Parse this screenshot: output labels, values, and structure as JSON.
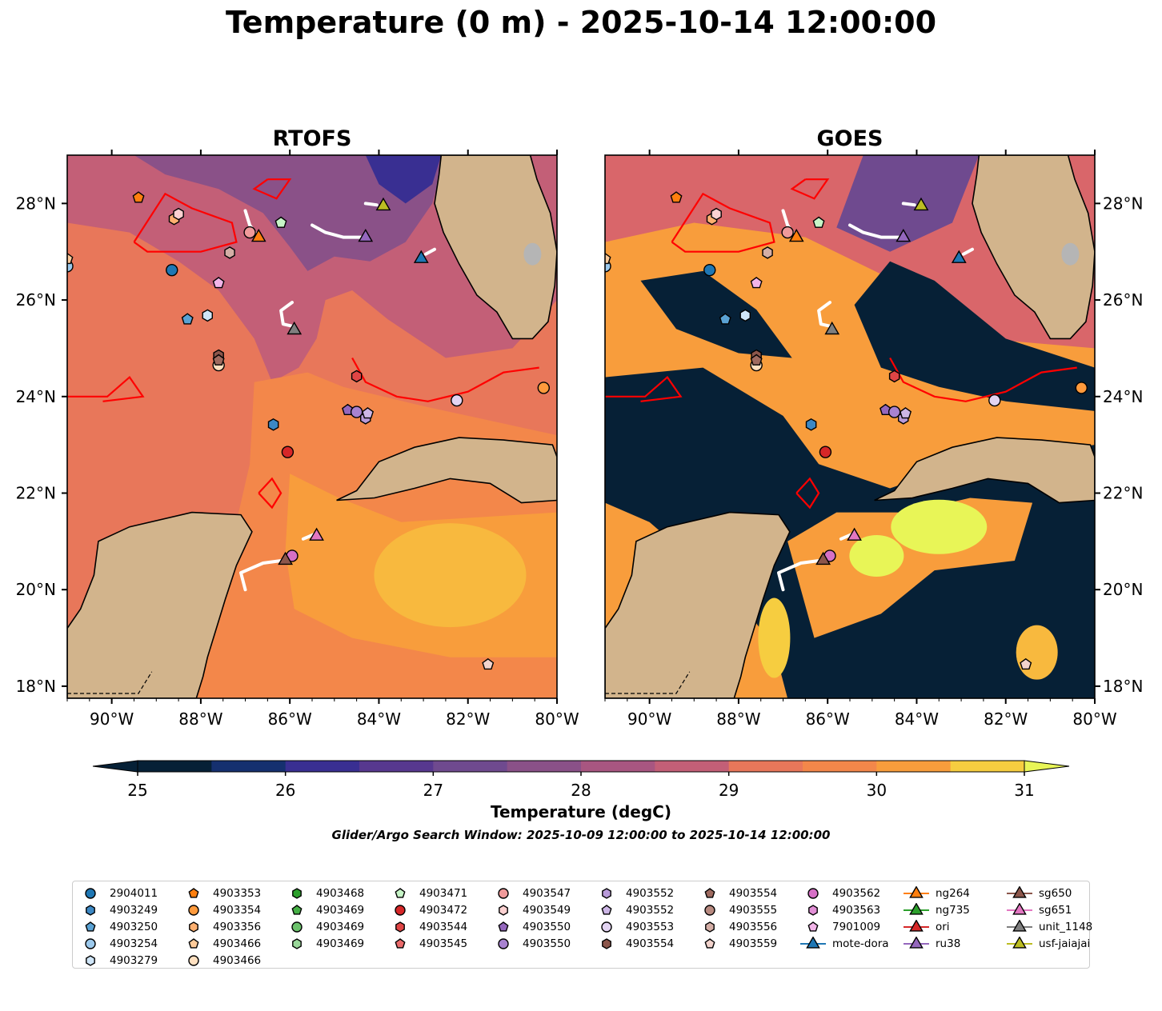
{
  "title": "Temperature (0 m) - 2025-10-14 12:00:00",
  "panels": [
    {
      "title": "RTOFS",
      "data_source": "model"
    },
    {
      "title": "GOES",
      "data_source": "satellite"
    }
  ],
  "axes": {
    "lon_ticks": [
      "90°W",
      "88°W",
      "86°W",
      "84°W",
      "82°W",
      "80°W"
    ],
    "lat_ticks": [
      "28°N",
      "26°N",
      "24°N",
      "22°N",
      "20°N",
      "18°N"
    ],
    "lon_range": [
      -91,
      -80
    ],
    "lat_range": [
      17.75,
      29
    ]
  },
  "colorbar": {
    "ticks": [
      "25",
      "26",
      "27",
      "28",
      "29",
      "30",
      "31"
    ],
    "label": "Temperature (degC)",
    "range": [
      25,
      31
    ],
    "colors": [
      "#062036",
      "#15306f",
      "#392f92",
      "#57388f",
      "#6f4a8f",
      "#8a5188",
      "#a85681",
      "#c35f77",
      "#d9666a",
      "#e8775a",
      "#f3874a",
      "#f89d3c",
      "#f8b93e",
      "#f6cd40",
      "#e8f557"
    ]
  },
  "search_window": "Glider/Argo Search Window: 2025-10-09 12:00:00 to 2025-10-14 12:00:00",
  "legend": {
    "columns": [
      [
        {
          "label": "2904011",
          "marker": "circle",
          "color": "#1f77b4"
        },
        {
          "label": "4903249",
          "marker": "hexagon",
          "color": "#3c88c4"
        },
        {
          "label": "4903250",
          "marker": "pentagon",
          "color": "#5aa2d4"
        },
        {
          "label": "4903254",
          "marker": "circle",
          "color": "#9cc9ec"
        },
        {
          "label": "4903279",
          "marker": "hexagon",
          "color": "#cfe5f7"
        }
      ],
      [
        {
          "label": "4903353",
          "marker": "pentagon",
          "color": "#ff7f0e"
        },
        {
          "label": "4903354",
          "marker": "circle",
          "color": "#ff9a3c"
        },
        {
          "label": "4903356",
          "marker": "hexagon",
          "color": "#ffb070"
        },
        {
          "label": "4903466",
          "marker": "pentagon",
          "color": "#ffcb9a"
        },
        {
          "label": "4903466",
          "marker": "circle",
          "color": "#ffe0c0"
        }
      ],
      [
        {
          "label": "4903468",
          "marker": "hexagon",
          "color": "#2ca02c"
        },
        {
          "label": "4903469",
          "marker": "pentagon",
          "color": "#45b045"
        },
        {
          "label": "4903469",
          "marker": "circle",
          "color": "#6cc26c"
        },
        {
          "label": "4903469",
          "marker": "hexagon",
          "color": "#9ad89a"
        }
      ],
      [
        {
          "label": "4903471",
          "marker": "pentagon",
          "color": "#c7f5c7"
        },
        {
          "label": "4903472",
          "marker": "circle",
          "color": "#d62728"
        },
        {
          "label": "4903544",
          "marker": "hexagon",
          "color": "#e04545"
        },
        {
          "label": "4903545",
          "marker": "pentagon",
          "color": "#ea6a6a"
        }
      ],
      [
        {
          "label": "4903547",
          "marker": "circle",
          "color": "#f09a9a"
        },
        {
          "label": "4903549",
          "marker": "hexagon",
          "color": "#fcd1d1"
        },
        {
          "label": "4903550",
          "marker": "pentagon",
          "color": "#9467bd"
        },
        {
          "label": "4903550",
          "marker": "circle",
          "color": "#a882d0"
        }
      ],
      [
        {
          "label": "4903552",
          "marker": "hexagon",
          "color": "#b89ad9"
        },
        {
          "label": "4903552",
          "marker": "pentagon",
          "color": "#cdb6e6"
        },
        {
          "label": "4903553",
          "marker": "circle",
          "color": "#e3d4f2"
        },
        {
          "label": "4903554",
          "marker": "hexagon",
          "color": "#8c564b"
        }
      ],
      [
        {
          "label": "4903554",
          "marker": "pentagon",
          "color": "#9e6a5f"
        },
        {
          "label": "4903555",
          "marker": "circle",
          "color": "#b88a80"
        },
        {
          "label": "4903556",
          "marker": "hexagon",
          "color": "#d4aea6"
        },
        {
          "label": "4903559",
          "marker": "pentagon",
          "color": "#f2d3cc"
        }
      ],
      [
        {
          "label": "4903562",
          "marker": "circle",
          "color": "#d670c6"
        },
        {
          "label": "4903563",
          "marker": "hexagon",
          "color": "#e28fd6"
        },
        {
          "label": "7901009",
          "marker": "pentagon",
          "color": "#f2b4e8"
        },
        {
          "label": "mote-dora",
          "marker": "triangle",
          "color": "#1f77b4"
        }
      ],
      [
        {
          "label": "ng264",
          "marker": "triangle",
          "color": "#ff7f0e"
        },
        {
          "label": "ng735",
          "marker": "triangle",
          "color": "#2ca02c"
        },
        {
          "label": "ori",
          "marker": "triangle",
          "color": "#d62728"
        },
        {
          "label": "ru38",
          "marker": "triangle",
          "color": "#9467bd"
        }
      ],
      [
        {
          "label": "sg650",
          "marker": "triangle",
          "color": "#8c564b"
        },
        {
          "label": "sg651",
          "marker": "triangle",
          "color": "#e377c2"
        },
        {
          "label": "unit_1148",
          "marker": "triangle",
          "color": "#7f7f7f"
        },
        {
          "label": "usf-jaiajai",
          "marker": "triangle",
          "color": "#bcbd22"
        }
      ]
    ]
  },
  "map_markers": [
    {
      "name": "2904011",
      "marker": "circle",
      "color": "#1f77b4",
      "lon": -88.65,
      "lat": 26.62
    },
    {
      "name": "4903249",
      "marker": "hexagon",
      "color": "#3c88c4",
      "lon": -86.37,
      "lat": 23.42
    },
    {
      "name": "4903250",
      "marker": "pentagon",
      "color": "#5aa2d4",
      "lon": -88.3,
      "lat": 25.6
    },
    {
      "name": "4903254",
      "marker": "circle",
      "color": "#9cc9ec",
      "lon": -91.0,
      "lat": 26.7
    },
    {
      "name": "4903279",
      "marker": "hexagon",
      "color": "#cfe5f7",
      "lon": -87.85,
      "lat": 25.68
    },
    {
      "name": "4903353",
      "marker": "pentagon",
      "color": "#ff7f0e",
      "lon": -89.4,
      "lat": 28.12
    },
    {
      "name": "4903354",
      "marker": "circle",
      "color": "#ff9a3c",
      "lon": -80.3,
      "lat": 24.18
    },
    {
      "name": "4903356",
      "marker": "hexagon",
      "color": "#ffb070",
      "lon": -88.6,
      "lat": 27.68
    },
    {
      "name": "4903466",
      "marker": "pentagon",
      "color": "#ffcb9a",
      "lon": -91.0,
      "lat": 26.85
    },
    {
      "name": "4903466",
      "marker": "circle",
      "color": "#ffe0c0",
      "lon": -87.6,
      "lat": 24.65
    },
    {
      "name": "4903471",
      "marker": "pentagon",
      "color": "#c7f5c7",
      "lon": -86.2,
      "lat": 27.6
    },
    {
      "name": "4903472",
      "marker": "circle",
      "color": "#d62728",
      "lon": -86.05,
      "lat": 22.85
    },
    {
      "name": "4903544",
      "marker": "hexagon",
      "color": "#e04545",
      "lon": -84.5,
      "lat": 24.42
    },
    {
      "name": "4903547",
      "marker": "circle",
      "color": "#f09a9a",
      "lon": -86.9,
      "lat": 27.4
    },
    {
      "name": "4903549",
      "marker": "hexagon",
      "color": "#fcd1d1",
      "lon": -88.5,
      "lat": 27.78
    },
    {
      "name": "4903550",
      "marker": "pentagon",
      "color": "#9467bd",
      "lon": -84.7,
      "lat": 23.72
    },
    {
      "name": "4903550",
      "marker": "circle",
      "color": "#a882d0",
      "lon": -84.5,
      "lat": 23.68
    },
    {
      "name": "4903552",
      "marker": "hexagon",
      "color": "#b89ad9",
      "lon": -84.3,
      "lat": 23.55
    },
    {
      "name": "4903552",
      "marker": "pentagon",
      "color": "#cdb6e6",
      "lon": -84.25,
      "lat": 23.65
    },
    {
      "name": "4903553",
      "marker": "circle",
      "color": "#e3d4f2",
      "lon": -82.25,
      "lat": 23.92
    },
    {
      "name": "4903554",
      "marker": "hexagon",
      "color": "#8c564b",
      "lon": -87.6,
      "lat": 24.85
    },
    {
      "name": "4903554",
      "marker": "pentagon",
      "color": "#9e6a5f",
      "lon": -87.6,
      "lat": 24.75
    },
    {
      "name": "4903556",
      "marker": "hexagon",
      "color": "#d4aea6",
      "lon": -87.35,
      "lat": 26.98
    },
    {
      "name": "4903559",
      "marker": "pentagon",
      "color": "#f2d3cc",
      "lon": -81.55,
      "lat": 18.45
    },
    {
      "name": "4903562",
      "marker": "circle",
      "color": "#d670c6",
      "lon": -85.95,
      "lat": 20.7
    },
    {
      "name": "7901009",
      "marker": "pentagon",
      "color": "#f2b4e8",
      "lon": -87.6,
      "lat": 26.35
    },
    {
      "name": "mote-dora",
      "marker": "triangle",
      "color": "#1f77b4",
      "lon": -83.05,
      "lat": 26.88
    },
    {
      "name": "ng264",
      "marker": "triangle",
      "color": "#ff7f0e",
      "lon": -86.7,
      "lat": 27.32
    },
    {
      "name": "ru38",
      "marker": "triangle",
      "color": "#9467bd",
      "lon": -84.3,
      "lat": 27.32
    },
    {
      "name": "sg650",
      "marker": "triangle",
      "color": "#8c564b",
      "lon": -86.1,
      "lat": 20.63
    },
    {
      "name": "sg651",
      "marker": "triangle",
      "color": "#e377c2",
      "lon": -85.4,
      "lat": 21.13
    },
    {
      "name": "unit_1148",
      "marker": "triangle",
      "color": "#7f7f7f",
      "lon": -85.9,
      "lat": 25.4
    },
    {
      "name": "usf-jaiajai",
      "marker": "triangle",
      "color": "#bcbd22",
      "lon": -83.9,
      "lat": 27.97
    }
  ],
  "glider_tracks": [
    {
      "name": "unit_1148",
      "points": [
        [
          -85.95,
          25.95
        ],
        [
          -86.2,
          25.78
        ],
        [
          -86.15,
          25.5
        ],
        [
          -85.9,
          25.45
        ]
      ]
    },
    {
      "name": "ru38",
      "points": [
        [
          -85.5,
          27.55
        ],
        [
          -85.2,
          27.4
        ],
        [
          -84.8,
          27.3
        ],
        [
          -84.4,
          27.3
        ]
      ]
    },
    {
      "name": "ng264",
      "points": [
        [
          -87.0,
          27.85
        ],
        [
          -86.9,
          27.55
        ],
        [
          -86.75,
          27.35
        ]
      ]
    },
    {
      "name": "sg651",
      "points": [
        [
          -85.7,
          21.05
        ],
        [
          -85.45,
          21.15
        ]
      ]
    },
    {
      "name": "sg650",
      "points": [
        [
          -87.0,
          20.0
        ],
        [
          -87.1,
          20.35
        ],
        [
          -86.6,
          20.55
        ],
        [
          -86.2,
          20.6
        ]
      ]
    },
    {
      "name": "usf-jaiajai",
      "points": [
        [
          -84.3,
          28.0
        ],
        [
          -84.05,
          27.97
        ]
      ]
    },
    {
      "name": "mote-dora",
      "points": [
        [
          -82.95,
          26.95
        ],
        [
          -82.75,
          27.05
        ]
      ]
    }
  ]
}
